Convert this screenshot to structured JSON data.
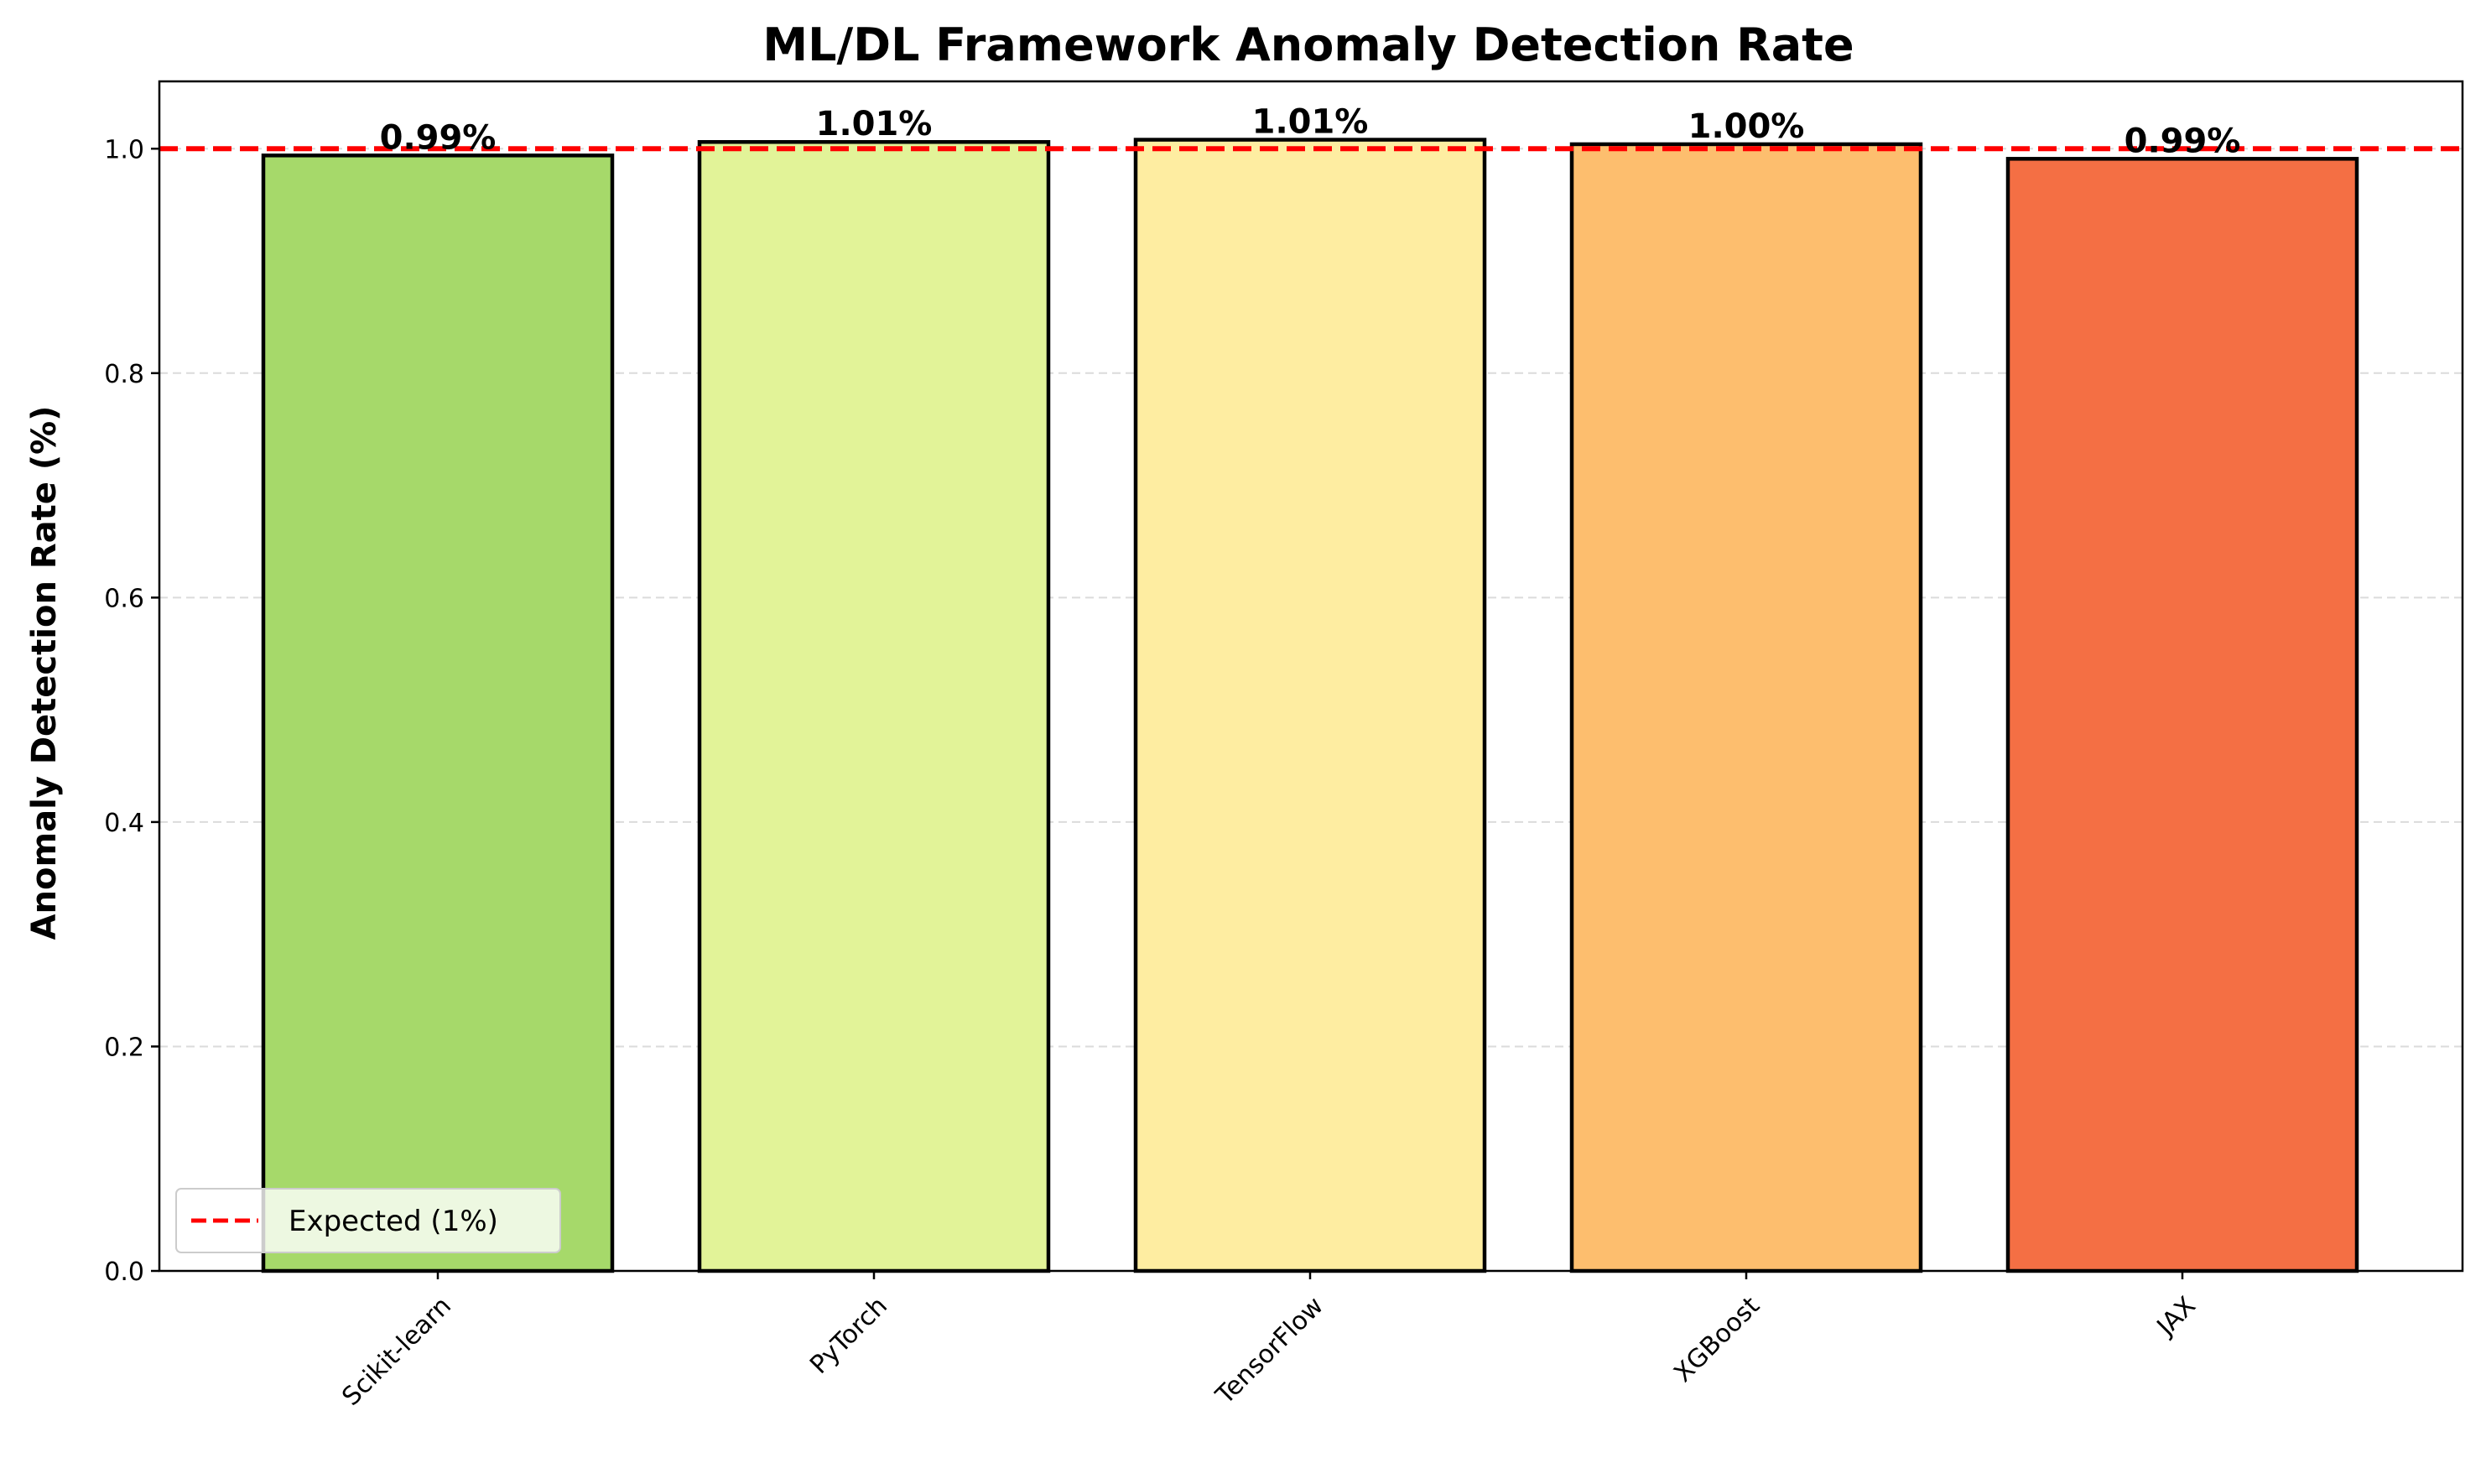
{
  "chart_data": {
    "type": "bar",
    "title": "ML/DL Framework Anomaly Detection Rate",
    "xlabel": "",
    "ylabel": "Anomaly Detection Rate (%)",
    "categories": [
      "Scikit-learn",
      "PyTorch",
      "TensorFlow",
      "XGBoost",
      "JAX"
    ],
    "values": [
      0.994,
      1.006,
      1.008,
      1.004,
      0.991
    ],
    "value_labels": [
      "0.99%",
      "1.01%",
      "1.01%",
      "1.00%",
      "0.99%"
    ],
    "colors": [
      "#a6d96a",
      "#e2f398",
      "#feeda1",
      "#fdbe6e",
      "#f46f44"
    ],
    "ylim": [
      0,
      1.06
    ],
    "yticks": [
      0.0,
      0.2,
      0.4,
      0.6,
      0.8,
      1.0
    ],
    "ytick_labels": [
      "0.0",
      "0.2",
      "0.4",
      "0.6",
      "0.8",
      "1.0"
    ],
    "reference_line": {
      "value": 1.0,
      "color": "#ff0000",
      "style": "dashed",
      "label": "Expected (1%)"
    },
    "grid": {
      "y": true,
      "x": false
    },
    "legend": {
      "placement": "lower-left",
      "entries": [
        "Expected (1%)"
      ]
    },
    "xtick_rotation": "45 degrees"
  }
}
